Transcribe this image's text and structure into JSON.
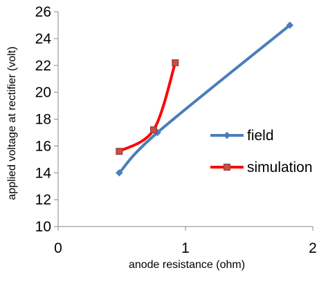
{
  "chart_data": {
    "type": "line",
    "title": "",
    "xlabel": "anode resistance (ohm)",
    "ylabel": "applied voltage at rectifier (volt)",
    "xlim": [
      0,
      2
    ],
    "ylim": [
      10,
      26
    ],
    "x_ticks": [
      0,
      1,
      2
    ],
    "y_ticks": [
      10,
      12,
      14,
      16,
      18,
      20,
      22,
      24,
      26
    ],
    "grid": false,
    "legend_position": "right",
    "series": [
      {
        "name": "field",
        "color": "#4a7ebb",
        "marker": "diamond",
        "x": [
          0.48,
          0.78,
          1.82
        ],
        "y": [
          14.0,
          17.0,
          25.0
        ]
      },
      {
        "name": "simulation",
        "color": "#ff0000",
        "marker": "square",
        "x": [
          0.48,
          0.75,
          0.92
        ],
        "y": [
          15.6,
          17.2,
          22.2
        ]
      }
    ]
  }
}
